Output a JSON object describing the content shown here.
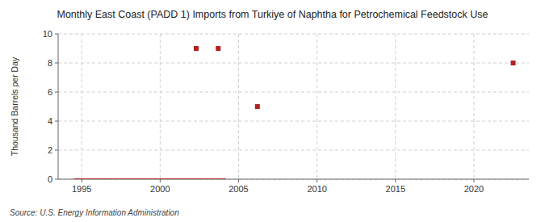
{
  "chart_data": {
    "type": "scatter",
    "title": "Monthly East Coast (PADD 1) Imports from Turkiye of Naphtha for Petrochemical Feedstock Use",
    "y_label": "Thousand Barrels per Day",
    "source": "Source: U.S. Energy Information Administration",
    "xlim": [
      1993.5,
      2023.5
    ],
    "ylim": [
      0,
      10
    ],
    "xticks": [
      1995,
      2000,
      2005,
      2010,
      2015,
      2020
    ],
    "yticks": [
      0,
      2,
      4,
      6,
      8,
      10
    ],
    "grid": true,
    "series": [
      {
        "type": "line",
        "color": "#b22222",
        "x": [
          1994.5,
          2004.2
        ],
        "values": [
          0,
          0
        ]
      },
      {
        "type": "scatter",
        "color": "#b22222",
        "marker": "square",
        "x": [
          2002.3,
          2003.7,
          2006.2,
          2022.5
        ],
        "values": [
          9,
          9,
          5,
          8
        ]
      }
    ]
  }
}
